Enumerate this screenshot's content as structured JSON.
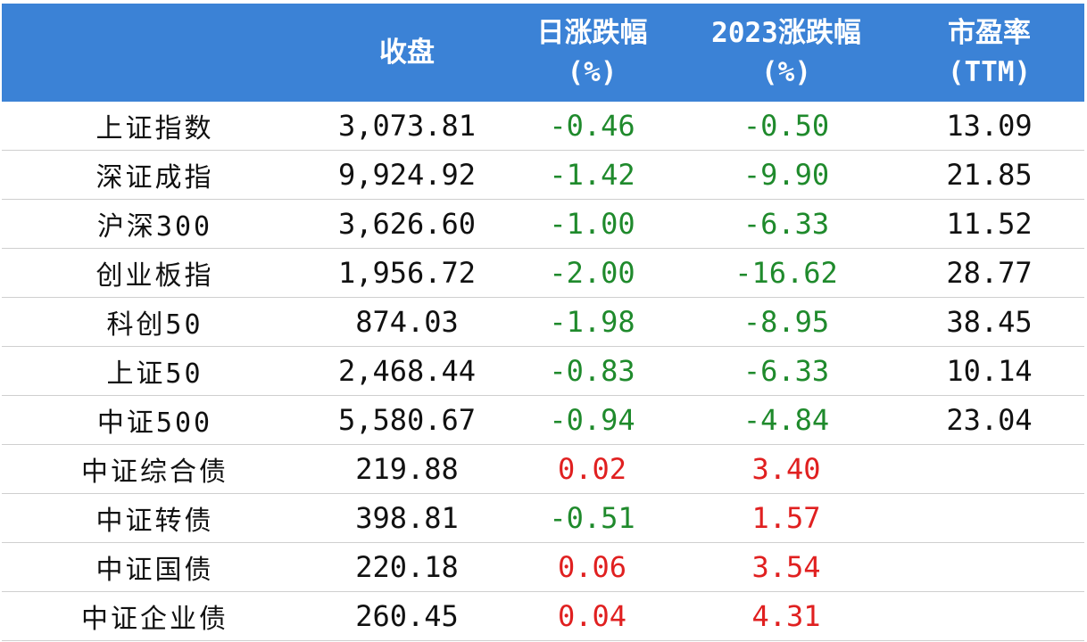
{
  "header": {
    "col0": "",
    "col1": "收盘",
    "col2_l1": "日涨跌幅",
    "col2_l2": "(%)",
    "col3_l1": "2023涨跌幅",
    "col3_l2": "(%)",
    "col4_l1": "市盈率",
    "col4_l2": "(TTM)"
  },
  "colors": {
    "header_bg": "#3b82d6",
    "negative": "#1f8a2c",
    "positive": "#e02020"
  },
  "rows": [
    {
      "name": "上证指数",
      "close": "3,073.81",
      "daily": "-0.46",
      "ytd": "-0.50",
      "pe": "13.09"
    },
    {
      "name": "深证成指",
      "close": "9,924.92",
      "daily": "-1.42",
      "ytd": "-9.90",
      "pe": "21.85"
    },
    {
      "name": "沪深300",
      "close": "3,626.60",
      "daily": "-1.00",
      "ytd": "-6.33",
      "pe": "11.52"
    },
    {
      "name": "创业板指",
      "close": "1,956.72",
      "daily": "-2.00",
      "ytd": "-16.62",
      "pe": "28.77"
    },
    {
      "name": "科创50",
      "close": "874.03",
      "daily": "-1.98",
      "ytd": "-8.95",
      "pe": "38.45"
    },
    {
      "name": "上证50",
      "close": "2,468.44",
      "daily": "-0.83",
      "ytd": "-6.33",
      "pe": "10.14"
    },
    {
      "name": "中证500",
      "close": "5,580.67",
      "daily": "-0.94",
      "ytd": "-4.84",
      "pe": "23.04"
    },
    {
      "name": "中证综合债",
      "close": "219.88",
      "daily": "0.02",
      "ytd": "3.40",
      "pe": ""
    },
    {
      "name": "中证转债",
      "close": "398.81",
      "daily": "-0.51",
      "ytd": "1.57",
      "pe": ""
    },
    {
      "name": "中证国债",
      "close": "220.18",
      "daily": "0.06",
      "ytd": "3.54",
      "pe": ""
    },
    {
      "name": "中证企业债",
      "close": "260.45",
      "daily": "0.04",
      "ytd": "4.31",
      "pe": ""
    }
  ]
}
